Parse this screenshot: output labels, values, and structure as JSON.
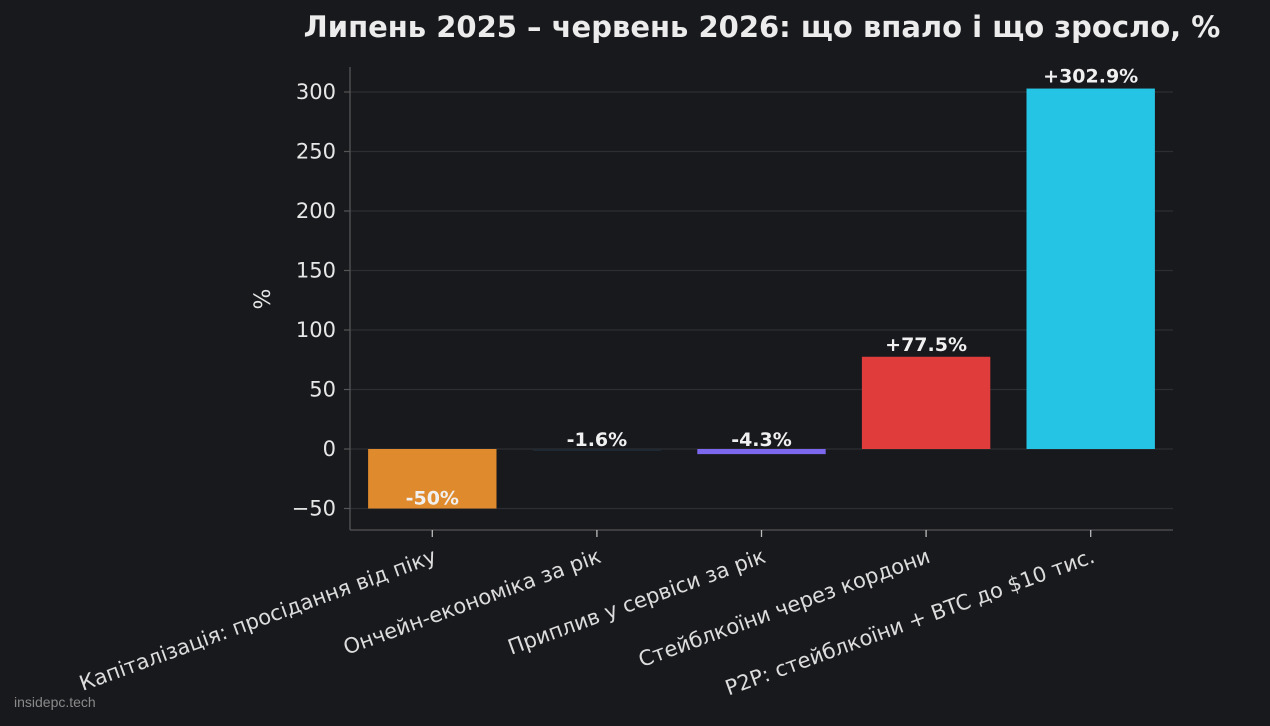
{
  "chart_data": {
    "type": "bar",
    "title": "Липень 2025 – червень 2026: що впало і що зросло, %",
    "ylabel": "%",
    "xlabel": "",
    "ylim": [
      -68,
      321
    ],
    "yticks": [
      -50,
      0,
      50,
      100,
      150,
      200,
      250,
      300
    ],
    "ytick_labels": [
      "−50",
      "0",
      "50",
      "100",
      "150",
      "200",
      "250",
      "300"
    ],
    "grid": true,
    "categories": [
      "Капіталізація: просідання від піку",
      "Ончейн-економіка за рік",
      "Приплив у сервіси за рік",
      "Стейблкоїни через кордони",
      "P2P: стейблкоїни + BTC до $10 тис."
    ],
    "values": [
      -50,
      -1.6,
      -4.3,
      77.5,
      302.9
    ],
    "data_labels": [
      "-50%",
      "-1.6%",
      "-4.3%",
      "+77.5%",
      "+302.9%"
    ],
    "colors": [
      "#e08a2e",
      "#1f2a35",
      "#7b68ee",
      "#e03c3c",
      "#25c4e4"
    ]
  },
  "watermark": "insidepc.tech"
}
